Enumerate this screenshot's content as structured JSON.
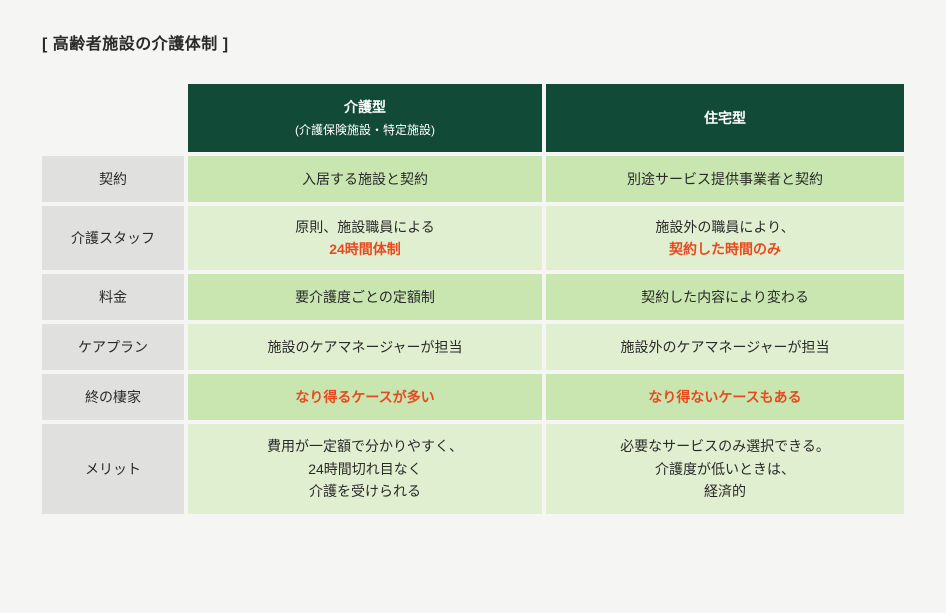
{
  "title": "[ 高齢者施設の介護体制 ]",
  "colors": {
    "background": "#f5f5f3",
    "header_bg": "#114a36",
    "header_text": "#ffffff",
    "row_head_bg": "#e0e0de",
    "content_a_bg": "#c9e6b0",
    "content_b_bg": "#e0efcf",
    "highlight_text": "#e84a1f",
    "body_text": "#2a2a2a"
  },
  "columns": {
    "col1": {
      "title": "介護型",
      "subtitle": "(介護保険施設・特定施設)"
    },
    "col2": {
      "title": "住宅型",
      "subtitle": ""
    }
  },
  "rows": [
    {
      "label": "契約",
      "col1": {
        "lines": [
          "入居する施設と契約"
        ],
        "highlight": []
      },
      "col2": {
        "lines": [
          "別途サービス提供事業者と契約"
        ],
        "highlight": []
      }
    },
    {
      "label": "介護スタッフ",
      "col1": {
        "lines": [
          "原則、施設職員による",
          "24時間体制"
        ],
        "highlight": [
          1
        ]
      },
      "col2": {
        "lines": [
          "施設外の職員により、",
          "契約した時間のみ"
        ],
        "highlight": [
          1
        ]
      }
    },
    {
      "label": "料金",
      "col1": {
        "lines": [
          "要介護度ごとの定額制"
        ],
        "highlight": []
      },
      "col2": {
        "lines": [
          "契約した内容により変わる"
        ],
        "highlight": []
      }
    },
    {
      "label": "ケアプラン",
      "col1": {
        "lines": [
          "施設のケアマネージャーが担当"
        ],
        "highlight": []
      },
      "col2": {
        "lines": [
          "施設外のケアマネージャーが担当"
        ],
        "highlight": []
      }
    },
    {
      "label": "終の棲家",
      "col1": {
        "lines": [
          "なり得るケースが多い"
        ],
        "highlight": [
          0
        ]
      },
      "col2": {
        "lines": [
          "なり得ないケースもある"
        ],
        "highlight": [
          0
        ]
      }
    },
    {
      "label": "メリット",
      "col1": {
        "lines": [
          "費用が一定額で分かりやすく、",
          "24時間切れ目なく",
          "介護を受けられる"
        ],
        "highlight": []
      },
      "col2": {
        "lines": [
          "必要なサービスのみ選択できる。",
          "介護度が低いときは、",
          "経済的"
        ],
        "highlight": []
      }
    }
  ]
}
